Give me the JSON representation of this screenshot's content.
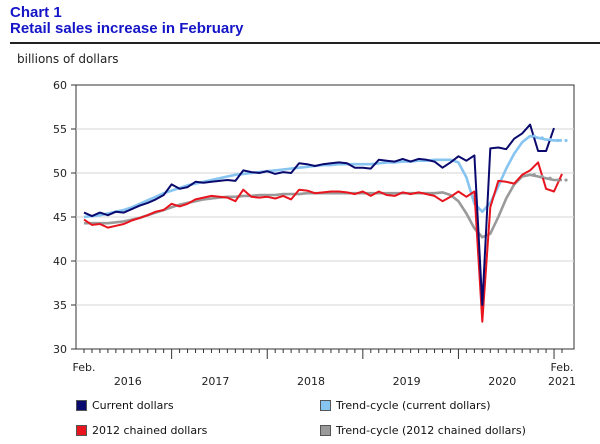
{
  "header": {
    "chart_number": "Chart 1",
    "chart_title": "Retail sales increase in February",
    "units_label": "billions of dollars"
  },
  "colors": {
    "title": "#1515c8",
    "current": "#0a0a6e",
    "trend_current": "#87c4f0",
    "chained": "#e8141e",
    "trend_chained": "#9a9a9a"
  },
  "chart_data": {
    "type": "line",
    "ylabel": "billions of dollars",
    "ylim": [
      30,
      60
    ],
    "yticks": [
      30,
      35,
      40,
      45,
      50,
      55,
      60
    ],
    "x_start_label": "Feb.",
    "x_end_label": "Feb.",
    "year_labels": [
      "2016",
      "2017",
      "2018",
      "2019",
      "2020",
      "2021"
    ],
    "x_months": [
      "2016-02",
      "2016-03",
      "2016-04",
      "2016-05",
      "2016-06",
      "2016-07",
      "2016-08",
      "2016-09",
      "2016-10",
      "2016-11",
      "2016-12",
      "2017-01",
      "2017-02",
      "2017-03",
      "2017-04",
      "2017-05",
      "2017-06",
      "2017-07",
      "2017-08",
      "2017-09",
      "2017-10",
      "2017-11",
      "2017-12",
      "2018-01",
      "2018-02",
      "2018-03",
      "2018-04",
      "2018-05",
      "2018-06",
      "2018-07",
      "2018-08",
      "2018-09",
      "2018-10",
      "2018-11",
      "2018-12",
      "2019-01",
      "2019-02",
      "2019-03",
      "2019-04",
      "2019-05",
      "2019-06",
      "2019-07",
      "2019-08",
      "2019-09",
      "2019-10",
      "2019-11",
      "2019-12",
      "2020-01",
      "2020-02",
      "2020-03",
      "2020-04",
      "2020-05",
      "2020-06",
      "2020-07",
      "2020-08",
      "2020-09",
      "2020-10",
      "2020-11",
      "2020-12",
      "2021-01",
      "2021-02"
    ],
    "legend_position": "bottom",
    "series": [
      {
        "name": "Current dollars",
        "color": "#0a0a6e",
        "style": "solid",
        "values": [
          45.5,
          45.1,
          45.5,
          45.2,
          45.6,
          45.5,
          45.9,
          46.3,
          46.6,
          47.0,
          47.5,
          48.7,
          48.2,
          48.4,
          49.0,
          48.9,
          49.0,
          49.1,
          49.2,
          49.1,
          50.3,
          50.1,
          50.0,
          50.2,
          49.9,
          50.1,
          50.0,
          51.1,
          51.0,
          50.8,
          51.0,
          51.1,
          51.2,
          51.1,
          50.6,
          50.6,
          50.5,
          51.5,
          51.4,
          51.3,
          51.6,
          51.3,
          51.6,
          51.5,
          51.3,
          50.6,
          51.2,
          51.9,
          51.4,
          52.0,
          35.0,
          52.8,
          52.9,
          52.7,
          53.9,
          54.5,
          55.5,
          52.5,
          52.5,
          55.1,
          null
        ]
      },
      {
        "name": "Trend-cycle (current dollars)",
        "color": "#87c4f0",
        "style": "solid",
        "values": [
          45.0,
          45.1,
          45.2,
          45.4,
          45.6,
          45.8,
          46.1,
          46.5,
          46.9,
          47.3,
          47.7,
          48.0,
          48.3,
          48.6,
          48.8,
          49.0,
          49.2,
          49.4,
          49.6,
          49.8,
          49.9,
          50.0,
          50.1,
          50.2,
          50.3,
          50.4,
          50.5,
          50.6,
          50.7,
          50.8,
          50.9,
          50.9,
          51.0,
          51.0,
          51.0,
          51.0,
          51.0,
          51.1,
          51.2,
          51.2,
          51.3,
          51.3,
          51.4,
          51.4,
          51.5,
          51.5,
          51.5,
          51.2,
          49.5,
          46.5,
          45.6,
          46.6,
          48.5,
          50.5,
          52.2,
          53.5,
          54.2,
          54.0,
          53.8,
          53.7,
          53.7
        ]
      },
      {
        "name": "2012 chained dollars",
        "color": "#e8141e",
        "style": "solid",
        "values": [
          44.7,
          44.1,
          44.2,
          43.8,
          44.0,
          44.2,
          44.6,
          44.9,
          45.2,
          45.6,
          45.8,
          46.5,
          46.2,
          46.5,
          47.0,
          47.2,
          47.4,
          47.3,
          47.2,
          46.8,
          48.1,
          47.3,
          47.2,
          47.3,
          47.1,
          47.4,
          47.0,
          48.1,
          48.0,
          47.7,
          47.8,
          47.9,
          47.9,
          47.8,
          47.6,
          47.9,
          47.4,
          47.9,
          47.5,
          47.4,
          47.8,
          47.6,
          47.8,
          47.6,
          47.4,
          46.8,
          47.3,
          47.9,
          47.3,
          47.9,
          33.1,
          46.1,
          49.1,
          49.0,
          48.8,
          49.8,
          50.3,
          51.2,
          48.2,
          47.9,
          49.9
        ]
      },
      {
        "name": "Trend-cycle (2012 chained dollars)",
        "color": "#9a9a9a",
        "style": "solid",
        "values": [
          44.3,
          44.3,
          44.3,
          44.3,
          44.4,
          44.5,
          44.7,
          44.9,
          45.2,
          45.5,
          45.8,
          46.1,
          46.4,
          46.6,
          46.8,
          47.0,
          47.1,
          47.2,
          47.3,
          47.3,
          47.4,
          47.4,
          47.5,
          47.5,
          47.5,
          47.6,
          47.6,
          47.6,
          47.7,
          47.7,
          47.7,
          47.7,
          47.7,
          47.7,
          47.7,
          47.7,
          47.7,
          47.7,
          47.7,
          47.7,
          47.7,
          47.7,
          47.7,
          47.7,
          47.7,
          47.8,
          47.5,
          46.8,
          45.4,
          43.7,
          42.7,
          43.1,
          45.0,
          47.1,
          48.7,
          49.6,
          49.8,
          49.6,
          49.4,
          49.2,
          49.2
        ]
      }
    ]
  },
  "legend": [
    {
      "label": "Current dollars",
      "color": "#0a0a6e"
    },
    {
      "label": "Trend-cycle (current dollars)",
      "color": "#87c4f0"
    },
    {
      "label": "2012 chained dollars",
      "color": "#e8141e"
    },
    {
      "label": "Trend-cycle (2012 chained dollars)",
      "color": "#9a9a9a"
    }
  ]
}
